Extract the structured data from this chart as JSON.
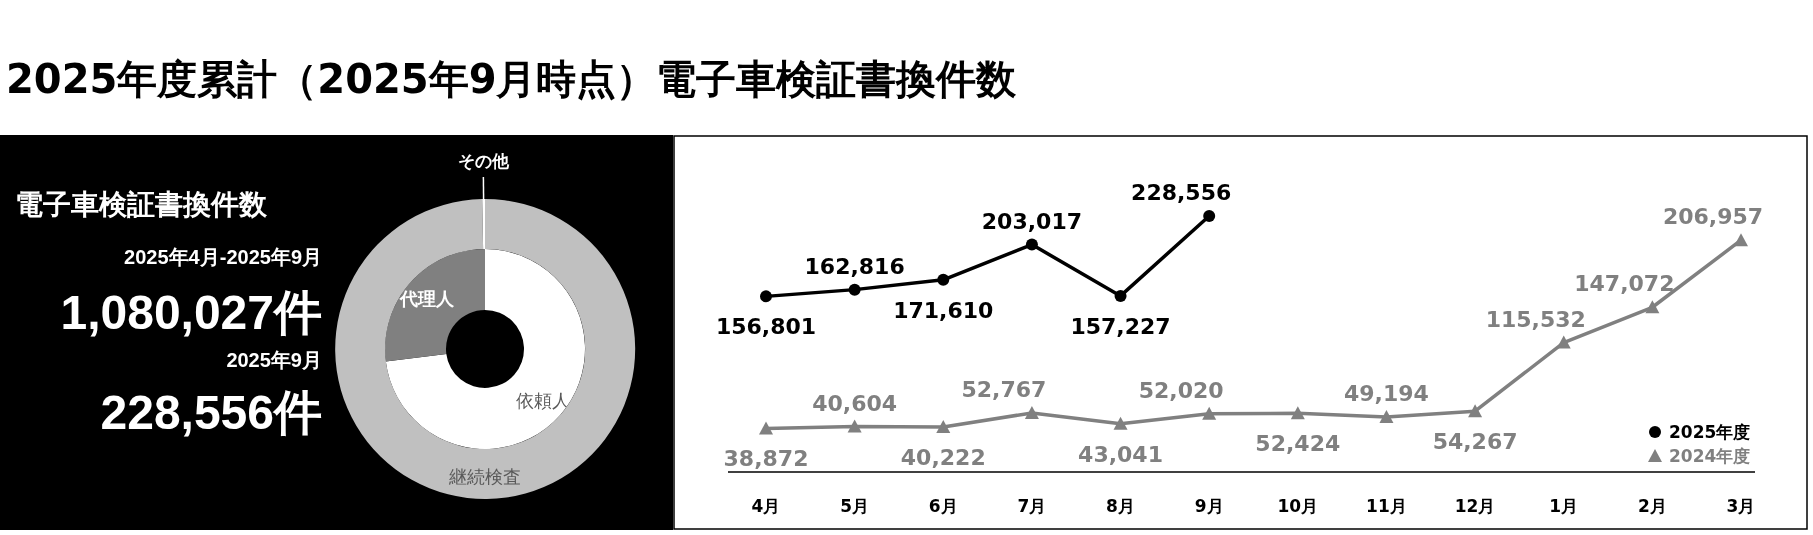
{
  "chart_data": [
    {
      "type": "other",
      "title": "2025年度累計（2025年9月時点）電子車検証書換件数",
      "annotations": [
        "電子車検証書換件数",
        "2025年4月-2025年9月",
        "1,080,027件",
        "2025年9月",
        "228,556件"
      ]
    },
    {
      "type": "donut",
      "categories": [
        "依頼人",
        "代理人"
      ],
      "values": [
        73,
        27
      ],
      "colors": [
        "#ffffff",
        "#808080"
      ]
    },
    {
      "type": "donut",
      "categories": [
        "継続検査",
        "その他"
      ],
      "values": [
        99.7,
        0.3
      ],
      "colors": [
        "#c0c0c0",
        "#ffffff"
      ]
    },
    {
      "type": "line",
      "categories": [
        "4月",
        "5月",
        "6月",
        "7月",
        "8月",
        "9月",
        "10月",
        "11月",
        "12月",
        "1月",
        "2月",
        "3月"
      ],
      "legend": "bottom right",
      "series": [
        {
          "name": "2025年度",
          "color": "#000000",
          "marker": "circle",
          "values": [
            156801,
            162816,
            171610,
            203017,
            157227,
            228556,
            null,
            null,
            null,
            null,
            null,
            null
          ],
          "value_labels": [
            "156,801",
            "162,816",
            "171,610",
            "203,017",
            "157,227",
            "228,556",
            null,
            null,
            null,
            null,
            null,
            null
          ]
        },
        {
          "name": "2024年度",
          "color": "#808080",
          "marker": "triangle",
          "values": [
            38872,
            40604,
            40222,
            52767,
            43041,
            52020,
            52424,
            49194,
            54267,
            115532,
            147072,
            206957
          ],
          "value_labels": [
            "38,872",
            "40,604",
            "40,222",
            "52,767",
            "43,041",
            "52,020",
            "52,424",
            "49,194",
            "54,267",
            "115,532",
            "147,072",
            "206,957"
          ]
        }
      ]
    }
  ]
}
